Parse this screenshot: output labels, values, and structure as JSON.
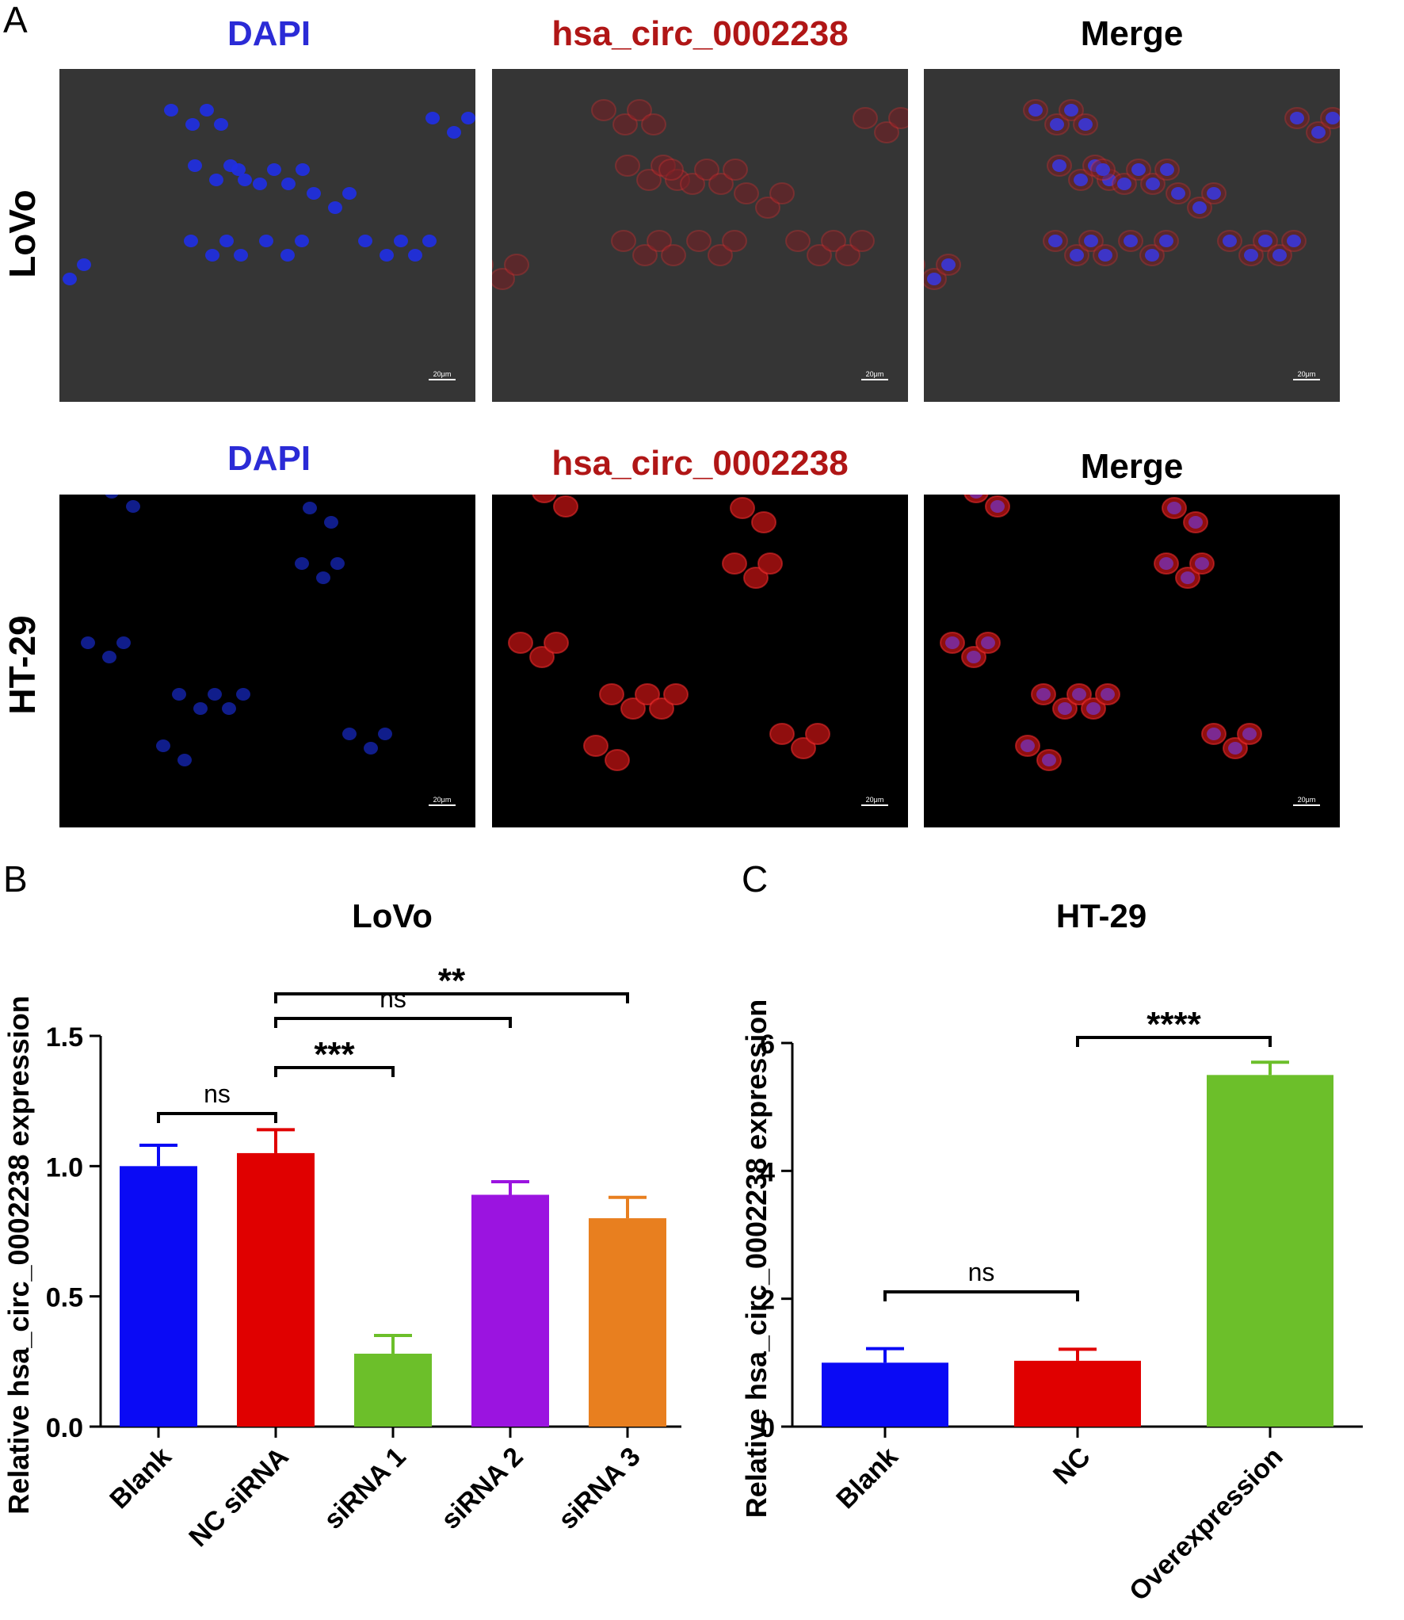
{
  "panel_labels": {
    "a": "A",
    "b": "B",
    "c": "C"
  },
  "micrographs": {
    "columns": [
      "DAPI",
      "hsa_circ_0002238",
      "Merge"
    ],
    "column_colors": [
      "#2b2bd6",
      "#b01616",
      "#000000"
    ],
    "rows": [
      {
        "label": "LoVo",
        "background": "#353535",
        "scale_bar": "20μm"
      },
      {
        "label": "HT-29",
        "background": "#000000",
        "scale_bar": "20μm"
      }
    ]
  },
  "chart_data": [
    {
      "type": "bar",
      "panel": "B",
      "title": "LoVo",
      "ylabel": "Relative hsa_circ_0002238 expression",
      "xlabel": "",
      "categories": [
        "Blank",
        "NC siRNA",
        "siRNA 1",
        "siRNA 2",
        "siRNA 3"
      ],
      "values": [
        1.0,
        1.05,
        0.28,
        0.89,
        0.8
      ],
      "errors": [
        0.08,
        0.09,
        0.07,
        0.05,
        0.08
      ],
      "colors": [
        "#0a0af5",
        "#e00000",
        "#6cbf2a",
        "#9b14e0",
        "#e87f1f"
      ],
      "ylim": [
        0,
        1.5
      ],
      "yticks": [
        "0.0",
        "0.5",
        "1.0",
        "1.5"
      ],
      "ytick_values": [
        0,
        0.5,
        1.0,
        1.5
      ],
      "significance": [
        {
          "from": 0,
          "to": 1,
          "label": "ns"
        },
        {
          "from": 1,
          "to": 2,
          "label": "***"
        },
        {
          "from": 1,
          "to": 3,
          "label": "ns"
        },
        {
          "from": 1,
          "to": 4,
          "label": "**"
        }
      ]
    },
    {
      "type": "bar",
      "panel": "C",
      "title": "HT-29",
      "ylabel": "Relative hsa_circ_0002238 expression",
      "xlabel": "",
      "categories": [
        "Blank",
        "NC",
        "Overexpression"
      ],
      "values": [
        1.0,
        1.03,
        5.5
      ],
      "errors": [
        0.22,
        0.18,
        0.2
      ],
      "colors": [
        "#0a0af5",
        "#e00000",
        "#6cbf2a"
      ],
      "ylim": [
        0,
        6
      ],
      "yticks": [
        "0",
        "2",
        "4",
        "6"
      ],
      "ytick_values": [
        0,
        2,
        4,
        6
      ],
      "significance": [
        {
          "from": 0,
          "to": 1,
          "label": "ns"
        },
        {
          "from": 1,
          "to": 2,
          "label": "****"
        }
      ]
    }
  ]
}
